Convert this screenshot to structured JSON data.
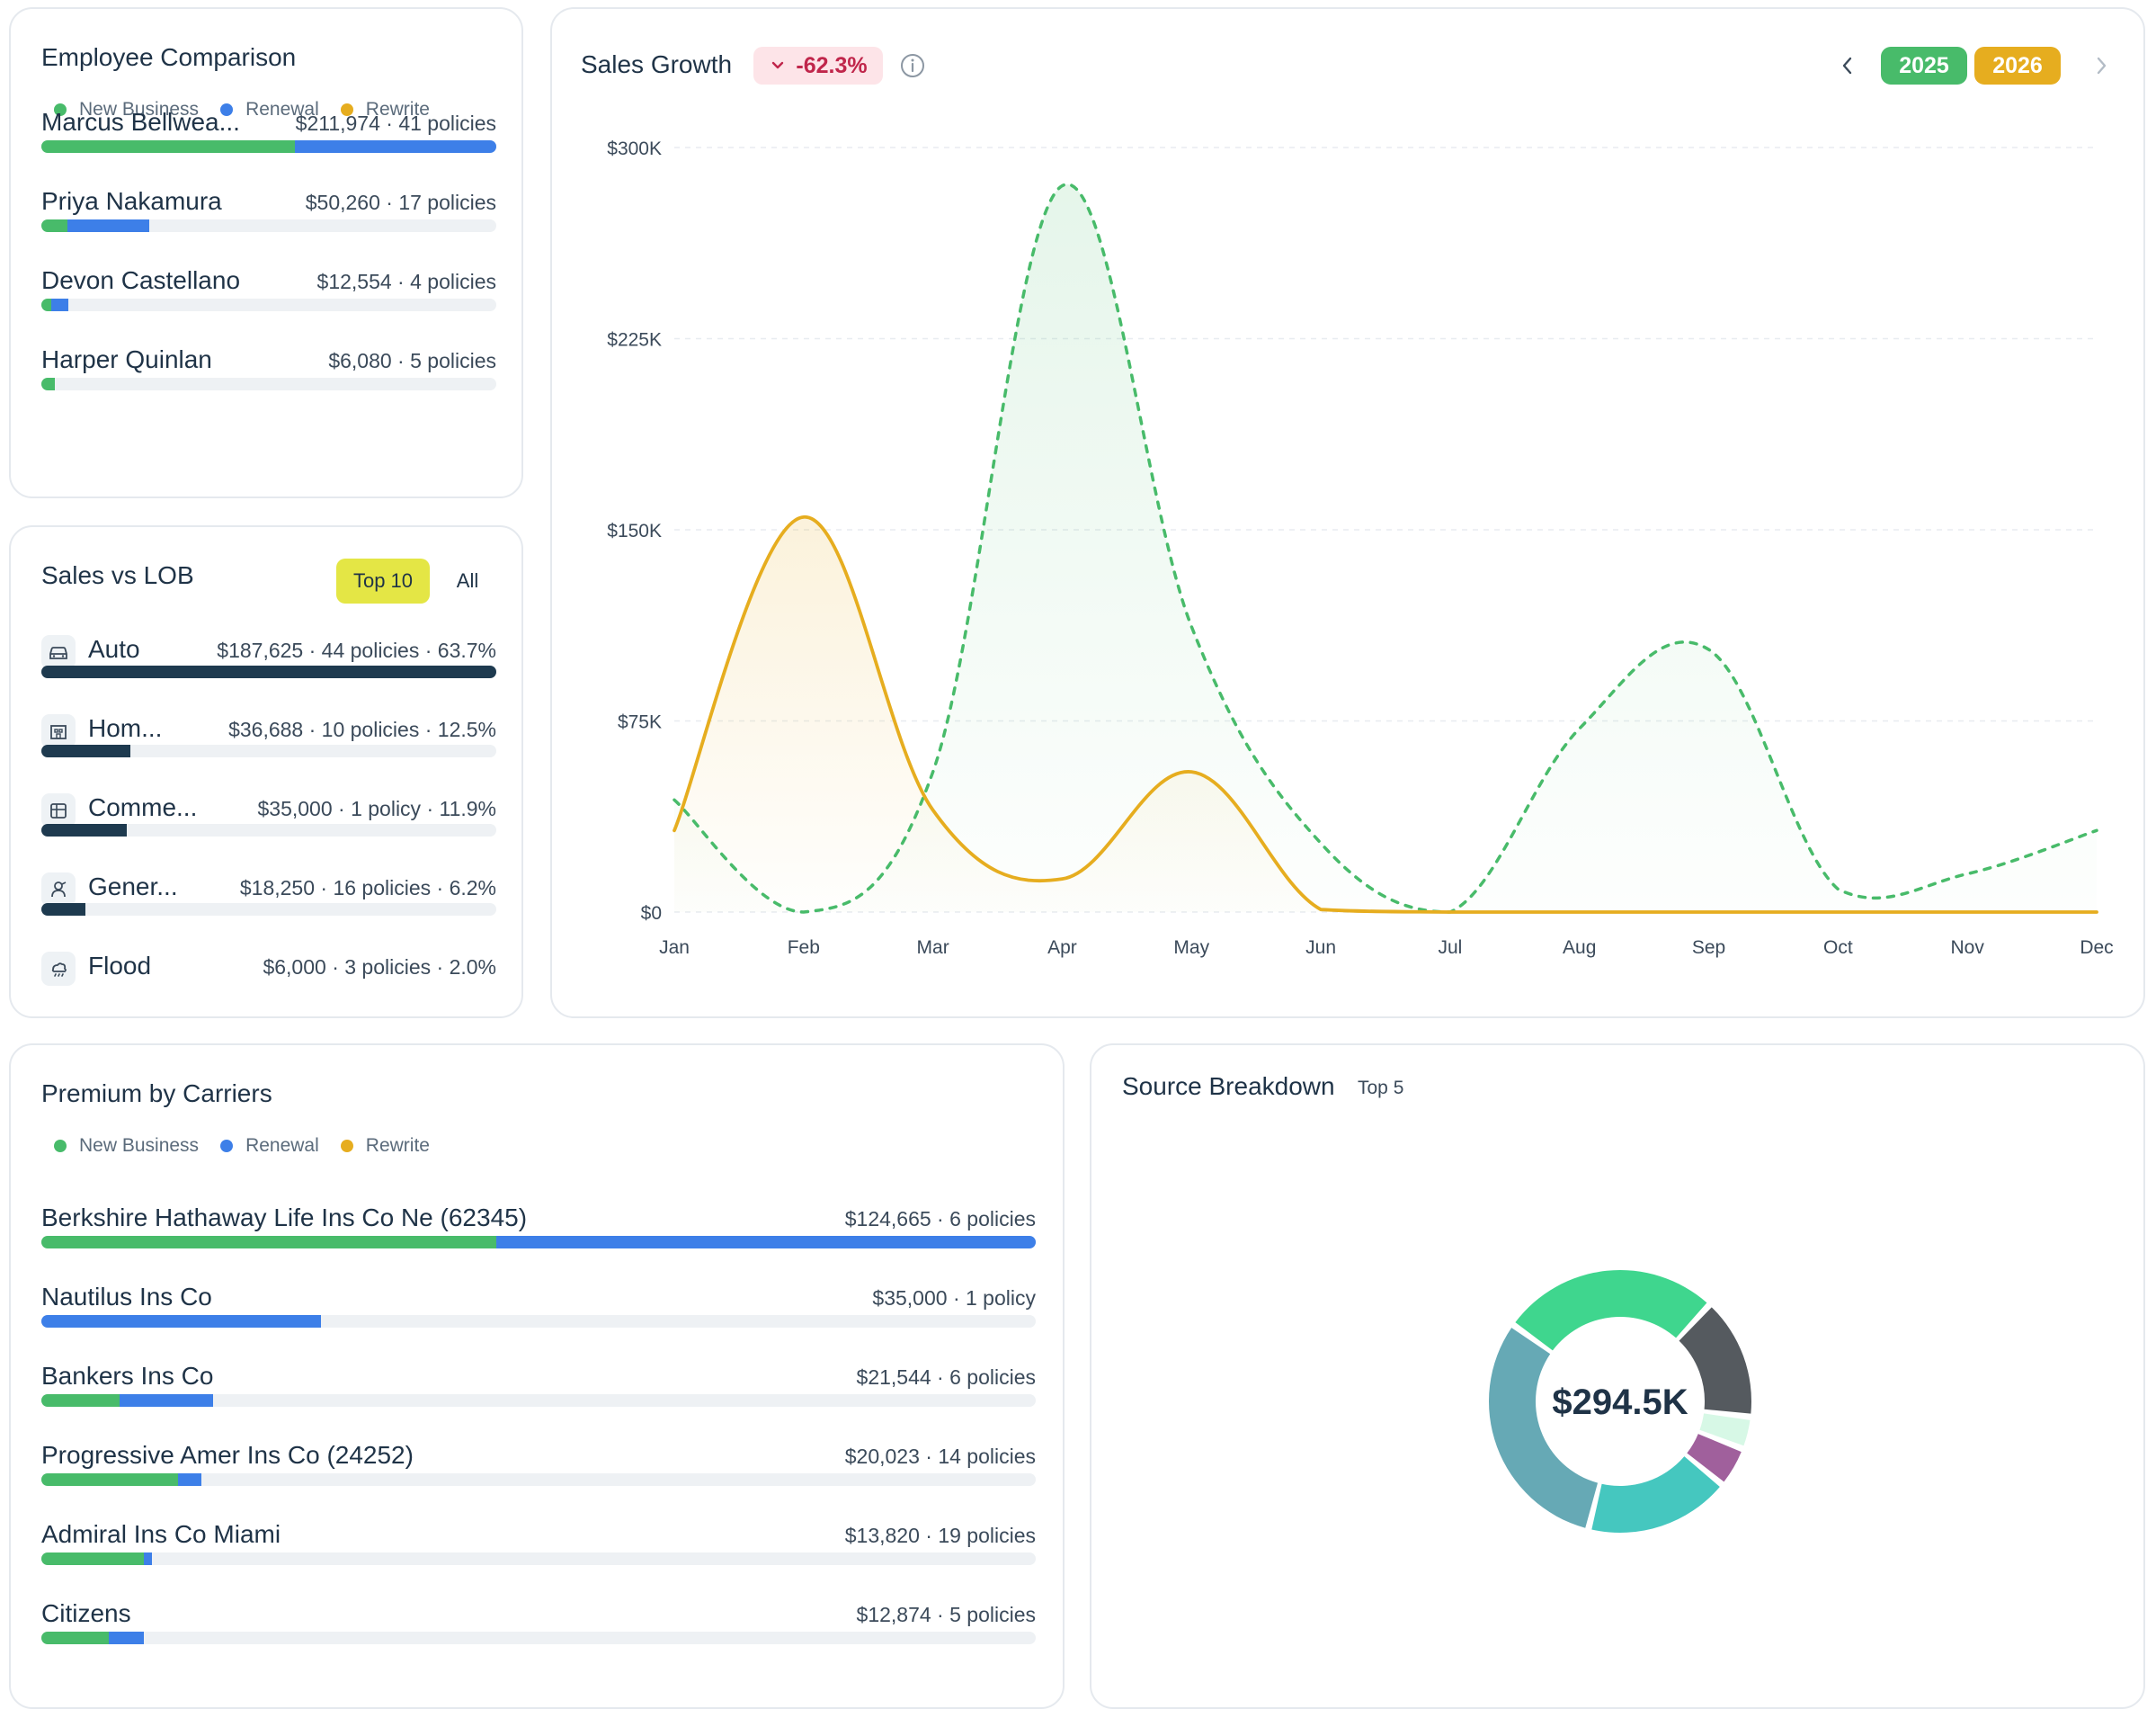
{
  "colors": {
    "new_business": "#48bb6a",
    "renewal": "#3d7fe8",
    "rewrite": "#e6ad1f",
    "lob_bar": "#1e3a4f",
    "track": "#eef1f4",
    "badge_bg": "#fde4e8",
    "badge_text": "#c0264b",
    "top10_bg": "#e4e645"
  },
  "legend": {
    "new_business": "New Business",
    "renewal": "Renewal",
    "rewrite": "Rewrite"
  },
  "employee_comparison": {
    "title": "Employee Comparison",
    "max": 211974,
    "rows": [
      {
        "name": "Marcus Bellwea...",
        "value": "$211,974 · 41 policies",
        "new_business": 118000,
        "renewal": 93974,
        "rewrite": 0
      },
      {
        "name": "Priya Nakamura",
        "value": "$50,260 · 17 policies",
        "new_business": 12000,
        "renewal": 38260,
        "rewrite": 0
      },
      {
        "name": "Devon Castellano",
        "value": "$12,554 · 4 policies",
        "new_business": 4500,
        "renewal": 8054,
        "rewrite": 0
      },
      {
        "name": "Harper Quinlan",
        "value": "$6,080 · 5 policies",
        "new_business": 6080,
        "renewal": 0,
        "rewrite": 0
      }
    ]
  },
  "sales_vs_lob": {
    "title": "Sales vs LOB",
    "tabs": {
      "top10": "Top 10",
      "all": "All"
    },
    "rows": [
      {
        "icon": "car-icon",
        "name": "Auto",
        "value": "$187,625 · 44 policies · 63.7%",
        "fraction": 1.0
      },
      {
        "icon": "home-icon",
        "name": "Hom...",
        "value": "$36,688 · 10 policies · 12.5%",
        "fraction": 0.196
      },
      {
        "icon": "commercial-icon",
        "name": "Comme...",
        "value": "$35,000 · 1 policy · 11.9%",
        "fraction": 0.187
      },
      {
        "icon": "general-icon",
        "name": "Gener...",
        "value": "$18,250 · 16 policies · 6.2%",
        "fraction": 0.097
      },
      {
        "icon": "flood-icon",
        "name": "Flood",
        "value": "$6,000 · 3 policies · 2.0%",
        "fraction": 0.032
      }
    ]
  },
  "sales_growth": {
    "title": "Sales Growth",
    "badge": "-62.3%",
    "years": [
      "2025",
      "2026"
    ]
  },
  "chart_data": {
    "type": "line",
    "x": [
      "Jan",
      "Feb",
      "Mar",
      "Apr",
      "May",
      "Jun",
      "Jul",
      "Aug",
      "Sep",
      "Oct",
      "Nov",
      "Dec"
    ],
    "y_ticks": [
      "$0",
      "$75K",
      "$150K",
      "$225K",
      "$300K"
    ],
    "ylim": [
      0,
      300000
    ],
    "grid": true,
    "series": [
      {
        "name": "2025",
        "style": "dashed",
        "color": "#48bb6a",
        "values": [
          44000,
          0,
          55000,
          285000,
          112000,
          27000,
          0,
          72000,
          103000,
          9000,
          15000,
          32000
        ]
      },
      {
        "name": "2026",
        "style": "solid",
        "color": "#e6ad1f",
        "values": [
          32000,
          155000,
          40000,
          13000,
          55000,
          1000,
          0,
          0,
          0,
          0,
          0,
          0
        ]
      }
    ]
  },
  "premium_by_carriers": {
    "title": "Premium by Carriers",
    "max": 124665,
    "rows": [
      {
        "name": "Berkshire Hathaway Life Ins Co Ne (62345)",
        "value": "$124,665 · 6 policies",
        "new_business": 57000,
        "renewal": 67665,
        "rewrite": 0
      },
      {
        "name": "Nautilus Ins Co",
        "value": "$35,000 · 1 policy",
        "new_business": 0,
        "renewal": 35000,
        "rewrite": 0
      },
      {
        "name": "Bankers Ins Co",
        "value": "$21,544 · 6 policies",
        "new_business": 9800,
        "renewal": 11744,
        "rewrite": 0
      },
      {
        "name": "Progressive Amer Ins Co (24252)",
        "value": "$20,023 · 14 policies",
        "new_business": 17100,
        "renewal": 2923,
        "rewrite": 0
      },
      {
        "name": "Admiral Ins Co Miami",
        "value": "$13,820 · 19 policies",
        "new_business": 12900,
        "renewal": 920,
        "rewrite": 0
      },
      {
        "name": "Citizens",
        "value": "$12,874 · 5 policies",
        "new_business": 8400,
        "renewal": 4474,
        "rewrite": 0
      }
    ]
  },
  "source_breakdown": {
    "title": "Source Breakdown",
    "subtitle": "Top 5",
    "total": "$294.5K",
    "segments": [
      {
        "value": 0.27,
        "color": "#3fd68e"
      },
      {
        "value": 0.15,
        "color": "#555a5f"
      },
      {
        "value": 0.04,
        "color": "#d7f8e6"
      },
      {
        "value": 0.05,
        "color": "#a0609c"
      },
      {
        "value": 0.18,
        "color": "#45c7bf"
      },
      {
        "value": 0.31,
        "color": "#66a9b5"
      }
    ]
  }
}
